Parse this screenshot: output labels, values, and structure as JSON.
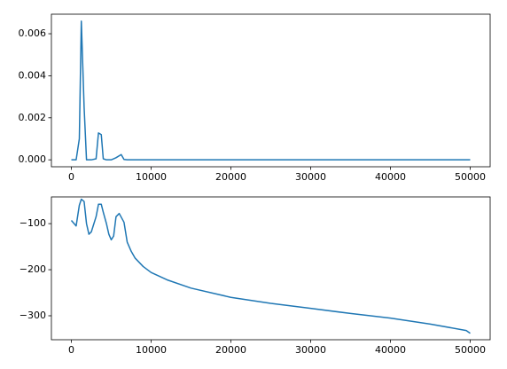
{
  "chart_data": [
    {
      "type": "line",
      "x": [
        0,
        600,
        1000,
        1250,
        1600,
        1900,
        2500,
        3100,
        3400,
        3750,
        4000,
        4400,
        5000,
        5600,
        6250,
        6600,
        7000,
        10000,
        20000,
        30000,
        40000,
        50000
      ],
      "series": [
        {
          "color": "#1f77b4",
          "values": [
            0,
            0,
            0.001,
            0.0066,
            0.0025,
            0,
            0,
            5e-05,
            0.00128,
            0.0012,
            5e-05,
            0,
            0,
            0.0001,
            0.00025,
            2e-05,
            0,
            0,
            0,
            0,
            0,
            0
          ]
        }
      ],
      "xlim": [
        -2500,
        52500
      ],
      "ylim": [
        -0.00033,
        0.00693
      ],
      "xticks": [
        0,
        10000,
        20000,
        30000,
        40000,
        50000
      ],
      "yticks": [
        {
          "value": 0,
          "label": "0.000"
        },
        {
          "value": 0.002,
          "label": "0.002"
        },
        {
          "value": 0.004,
          "label": "0.004"
        },
        {
          "value": 0.006,
          "label": "0.006"
        }
      ]
    },
    {
      "type": "line",
      "x": [
        0,
        600,
        1000,
        1250,
        1600,
        1900,
        2200,
        2500,
        3100,
        3400,
        3750,
        4000,
        4400,
        4700,
        5000,
        5300,
        5600,
        6000,
        6600,
        7000,
        7500,
        8000,
        9000,
        10000,
        12000,
        15000,
        20000,
        25000,
        30000,
        35000,
        40000,
        45000,
        49500,
        50000
      ],
      "series": [
        {
          "color": "#1f77b4",
          "values": [
            -93,
            -105,
            -60,
            -47,
            -52,
            -100,
            -123,
            -118,
            -85,
            -58,
            -58,
            -75,
            -100,
            -123,
            -135,
            -127,
            -85,
            -78,
            -97,
            -140,
            -160,
            -175,
            -193,
            -206,
            -222,
            -240,
            -260,
            -273,
            -284,
            -295,
            -305,
            -318,
            -332,
            -338
          ]
        }
      ],
      "xlim": [
        -2500,
        52500
      ],
      "ylim": [
        -352,
        -42
      ],
      "xticks": [
        0,
        10000,
        20000,
        30000,
        40000,
        50000
      ],
      "yticks": [
        {
          "value": -300,
          "label": "−300"
        },
        {
          "value": -200,
          "label": "−200"
        },
        {
          "value": -100,
          "label": "−100"
        }
      ]
    }
  ]
}
